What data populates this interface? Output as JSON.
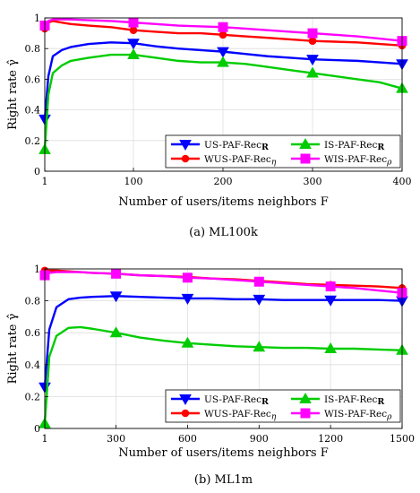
{
  "chart_data": [
    {
      "type": "line",
      "caption": "(a)  ML100k",
      "xlabel": "Number of users/items neighbors F",
      "ylabel": "Right rate γ̂",
      "xlim": [
        1,
        400
      ],
      "ylim": [
        0,
        1
      ],
      "xticks": [
        1,
        100,
        200,
        300,
        400
      ],
      "yticks": [
        0,
        0.2,
        0.4,
        0.6,
        0.8,
        1
      ],
      "ytick_labels": [
        "0",
        "0.2",
        "0.4",
        "0.6",
        "0.8",
        "1"
      ],
      "grid": true,
      "legend_position": "bottom-right",
      "legend_columns": 2,
      "series": [
        {
          "name": "US-PAF-RecR",
          "color": "#0000ff",
          "marker": "triangle-down",
          "x": [
            1,
            5,
            10,
            20,
            30,
            50,
            75,
            100,
            125,
            150,
            175,
            200,
            225,
            250,
            275,
            300,
            325,
            350,
            375,
            400
          ],
          "values": [
            0.34,
            0.62,
            0.75,
            0.79,
            0.81,
            0.83,
            0.84,
            0.835,
            0.815,
            0.8,
            0.79,
            0.78,
            0.765,
            0.75,
            0.74,
            0.73,
            0.725,
            0.72,
            0.71,
            0.7
          ]
        },
        {
          "name": "IS-PAF-RecR",
          "color": "#00cc00",
          "marker": "triangle-up",
          "x": [
            1,
            5,
            10,
            20,
            30,
            50,
            75,
            100,
            125,
            150,
            175,
            200,
            225,
            250,
            275,
            300,
            325,
            350,
            375,
            400
          ],
          "values": [
            0.14,
            0.5,
            0.64,
            0.69,
            0.72,
            0.74,
            0.76,
            0.76,
            0.74,
            0.72,
            0.71,
            0.71,
            0.7,
            0.68,
            0.66,
            0.64,
            0.62,
            0.6,
            0.58,
            0.54
          ]
        },
        {
          "name": "WUS-PAF-Recη",
          "color": "#ff0000",
          "marker": "circle",
          "x": [
            1,
            5,
            10,
            20,
            30,
            50,
            75,
            100,
            125,
            150,
            175,
            200,
            225,
            250,
            275,
            300,
            325,
            350,
            375,
            400
          ],
          "values": [
            0.93,
            0.97,
            0.98,
            0.97,
            0.96,
            0.95,
            0.94,
            0.92,
            0.91,
            0.9,
            0.9,
            0.89,
            0.88,
            0.87,
            0.86,
            0.85,
            0.845,
            0.84,
            0.83,
            0.82
          ]
        },
        {
          "name": "WIS-PAF-Recρ",
          "color": "#ff00ff",
          "marker": "square",
          "x": [
            1,
            5,
            10,
            20,
            30,
            50,
            75,
            100,
            125,
            150,
            175,
            200,
            225,
            250,
            275,
            300,
            325,
            350,
            375,
            400
          ],
          "values": [
            0.95,
            0.98,
            0.99,
            0.99,
            0.99,
            0.985,
            0.98,
            0.97,
            0.96,
            0.95,
            0.945,
            0.94,
            0.93,
            0.92,
            0.91,
            0.9,
            0.89,
            0.88,
            0.865,
            0.85
          ]
        }
      ]
    },
    {
      "type": "line",
      "caption": "(b)  ML1m",
      "xlabel": "Number of users/items neighbors F",
      "ylabel": "Right rate γ̂",
      "xlim": [
        1,
        1500
      ],
      "ylim": [
        0,
        1
      ],
      "xticks": [
        1,
        300,
        600,
        900,
        1200,
        1500
      ],
      "yticks": [
        0,
        0.2,
        0.4,
        0.6,
        0.8,
        1
      ],
      "ytick_labels": [
        "0",
        "0.2",
        "0.4",
        "0.6",
        "0.8",
        "1"
      ],
      "grid": true,
      "legend_position": "bottom-right",
      "legend_columns": 2,
      "series": [
        {
          "name": "US-PAF-RecR",
          "color": "#0000ff",
          "marker": "triangle-down",
          "x": [
            1,
            20,
            50,
            100,
            150,
            200,
            300,
            400,
            500,
            600,
            700,
            800,
            900,
            1000,
            1100,
            1200,
            1300,
            1400,
            1500
          ],
          "values": [
            0.26,
            0.62,
            0.76,
            0.81,
            0.82,
            0.825,
            0.83,
            0.825,
            0.82,
            0.815,
            0.815,
            0.81,
            0.81,
            0.805,
            0.805,
            0.805,
            0.805,
            0.805,
            0.8
          ]
        },
        {
          "name": "IS-PAF-RecR",
          "color": "#00cc00",
          "marker": "triangle-up",
          "x": [
            1,
            20,
            50,
            100,
            150,
            200,
            300,
            400,
            500,
            600,
            700,
            800,
            900,
            1000,
            1100,
            1200,
            1300,
            1400,
            1500
          ],
          "values": [
            0.03,
            0.45,
            0.58,
            0.63,
            0.635,
            0.625,
            0.6,
            0.57,
            0.55,
            0.535,
            0.525,
            0.515,
            0.51,
            0.505,
            0.505,
            0.5,
            0.5,
            0.495,
            0.49
          ]
        },
        {
          "name": "WUS-PAF-Recη",
          "color": "#ff0000",
          "marker": "circle",
          "x": [
            1,
            20,
            50,
            100,
            150,
            200,
            300,
            400,
            500,
            600,
            700,
            800,
            900,
            1000,
            1100,
            1200,
            1300,
            1400,
            1500
          ],
          "values": [
            0.99,
            0.99,
            0.99,
            0.985,
            0.98,
            0.975,
            0.97,
            0.96,
            0.955,
            0.95,
            0.94,
            0.935,
            0.925,
            0.915,
            0.905,
            0.9,
            0.895,
            0.89,
            0.88
          ]
        },
        {
          "name": "WIS-PAF-Recρ",
          "color": "#ff00ff",
          "marker": "square",
          "x": [
            1,
            20,
            50,
            100,
            150,
            200,
            300,
            400,
            500,
            600,
            700,
            800,
            900,
            1000,
            1100,
            1200,
            1300,
            1400,
            1500
          ],
          "values": [
            0.96,
            0.975,
            0.98,
            0.98,
            0.98,
            0.975,
            0.97,
            0.96,
            0.955,
            0.945,
            0.94,
            0.93,
            0.92,
            0.91,
            0.9,
            0.89,
            0.88,
            0.865,
            0.85
          ]
        }
      ]
    }
  ]
}
